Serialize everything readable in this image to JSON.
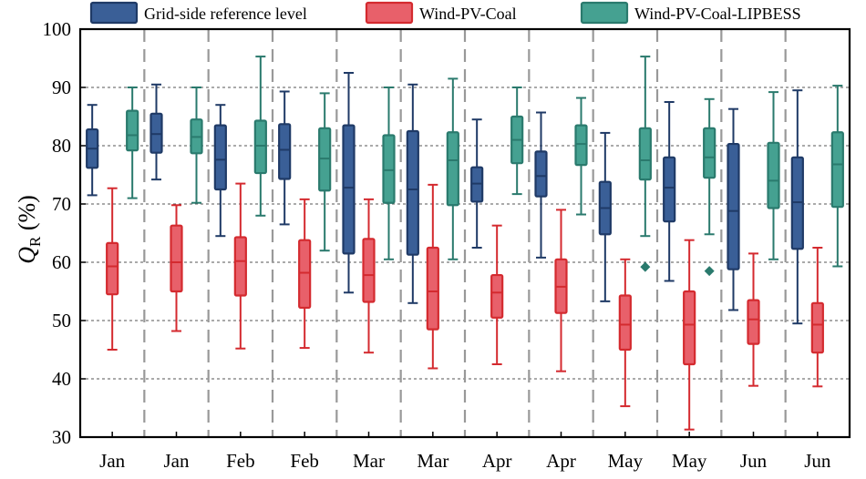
{
  "chart_data": {
    "type": "boxplot",
    "xlabel": "",
    "ylabel": "Q",
    "ylabel_subscript": "R",
    "ylabel_unit": " (%)",
    "ylim": [
      30,
      100
    ],
    "yticks": [
      30,
      40,
      50,
      60,
      70,
      80,
      90,
      100
    ],
    "grid": "horizontal dashed",
    "legend_position": "top",
    "categories": [
      "Jan",
      "Jan",
      "Feb",
      "Feb",
      "Mar",
      "Mar",
      "Apr",
      "Apr",
      "May",
      "May",
      "Jun",
      "Jun"
    ],
    "series": [
      {
        "name": "Grid-side reference level",
        "color": "#3a5f97",
        "edge": "#1f3a66",
        "boxes": [
          {
            "min": 71.5,
            "q1": 76.2,
            "median": 79.5,
            "q3": 82.8,
            "max": 87.0
          },
          {
            "min": 74.2,
            "q1": 78.8,
            "median": 82.0,
            "q3": 85.5,
            "max": 90.5
          },
          {
            "min": 64.5,
            "q1": 72.5,
            "median": 77.6,
            "q3": 83.5,
            "max": 87.0
          },
          {
            "min": 66.5,
            "q1": 74.3,
            "median": 79.3,
            "q3": 83.7,
            "max": 89.3
          },
          {
            "min": 54.8,
            "q1": 61.5,
            "median": 72.8,
            "q3": 83.5,
            "max": 92.5
          },
          {
            "min": 53.0,
            "q1": 61.3,
            "median": 72.5,
            "q3": 82.5,
            "max": 90.5
          },
          {
            "min": 62.5,
            "q1": 70.4,
            "median": 73.5,
            "q3": 76.3,
            "max": 84.5
          },
          {
            "min": 60.8,
            "q1": 71.3,
            "median": 74.8,
            "q3": 79.0,
            "max": 85.7
          },
          {
            "min": 53.3,
            "q1": 64.8,
            "median": 69.3,
            "q3": 73.8,
            "max": 82.2
          },
          {
            "min": 56.8,
            "q1": 67.0,
            "median": 72.8,
            "q3": 78.0,
            "max": 87.5
          },
          {
            "min": 51.8,
            "q1": 58.8,
            "median": 68.8,
            "q3": 80.3,
            "max": 86.3
          },
          {
            "min": 49.5,
            "q1": 62.3,
            "median": 70.3,
            "q3": 78.0,
            "max": 89.5
          }
        ],
        "outliers": []
      },
      {
        "name": "Wind-PV-Coal",
        "color": "#e8606a",
        "edge": "#d42a2f",
        "boxes": [
          {
            "min": 45.0,
            "q1": 54.5,
            "median": 59.3,
            "q3": 63.3,
            "max": 72.7
          },
          {
            "min": 48.2,
            "q1": 55.0,
            "median": 60.0,
            "q3": 66.3,
            "max": 69.8
          },
          {
            "min": 45.2,
            "q1": 54.3,
            "median": 60.2,
            "q3": 64.3,
            "max": 73.5
          },
          {
            "min": 45.3,
            "q1": 52.2,
            "median": 58.2,
            "q3": 63.8,
            "max": 70.8
          },
          {
            "min": 44.5,
            "q1": 53.2,
            "median": 57.8,
            "q3": 64.0,
            "max": 70.8
          },
          {
            "min": 41.8,
            "q1": 48.5,
            "median": 55.0,
            "q3": 62.5,
            "max": 73.3
          },
          {
            "min": 42.5,
            "q1": 50.5,
            "median": 54.8,
            "q3": 57.8,
            "max": 66.3
          },
          {
            "min": 41.3,
            "q1": 51.3,
            "median": 55.8,
            "q3": 60.5,
            "max": 69.0
          },
          {
            "min": 35.3,
            "q1": 45.0,
            "median": 49.3,
            "q3": 54.3,
            "max": 60.5
          },
          {
            "min": 31.3,
            "q1": 42.5,
            "median": 49.3,
            "q3": 55.0,
            "max": 63.8
          },
          {
            "min": 38.8,
            "q1": 46.0,
            "median": 50.2,
            "q3": 53.5,
            "max": 61.5
          },
          {
            "min": 38.7,
            "q1": 44.5,
            "median": 49.3,
            "q3": 53.0,
            "max": 62.5
          }
        ],
        "outliers": []
      },
      {
        "name": "Wind-PV-Coal-LIPBESS",
        "color": "#45a191",
        "edge": "#2a7a6d",
        "boxes": [
          {
            "min": 71.0,
            "q1": 79.2,
            "median": 81.8,
            "q3": 86.0,
            "max": 90.0
          },
          {
            "min": 70.2,
            "q1": 78.7,
            "median": 81.5,
            "q3": 84.5,
            "max": 90.0
          },
          {
            "min": 68.0,
            "q1": 75.3,
            "median": 80.0,
            "q3": 84.3,
            "max": 95.3
          },
          {
            "min": 62.0,
            "q1": 72.3,
            "median": 77.8,
            "q3": 83.0,
            "max": 89.0
          },
          {
            "min": 60.5,
            "q1": 70.2,
            "median": 75.8,
            "q3": 81.8,
            "max": 90.0
          },
          {
            "min": 60.5,
            "q1": 69.8,
            "median": 77.5,
            "q3": 82.3,
            "max": 91.5
          },
          {
            "min": 71.7,
            "q1": 77.0,
            "median": 81.0,
            "q3": 85.0,
            "max": 90.0
          },
          {
            "min": 68.2,
            "q1": 76.7,
            "median": 80.3,
            "q3": 83.5,
            "max": 88.2
          },
          {
            "min": 64.5,
            "q1": 74.2,
            "median": 77.5,
            "q3": 83.0,
            "max": 95.3
          },
          {
            "min": 64.8,
            "q1": 74.5,
            "median": 78.0,
            "q3": 83.0,
            "max": 88.0
          },
          {
            "min": 60.5,
            "q1": 69.3,
            "median": 74.0,
            "q3": 80.5,
            "max": 89.2
          },
          {
            "min": 59.3,
            "q1": 69.5,
            "median": 76.8,
            "q3": 82.3,
            "max": 90.3
          }
        ],
        "outliers": [
          {
            "category_index": 8,
            "value": 59.2
          },
          {
            "category_index": 9,
            "value": 58.5
          }
        ]
      }
    ]
  }
}
